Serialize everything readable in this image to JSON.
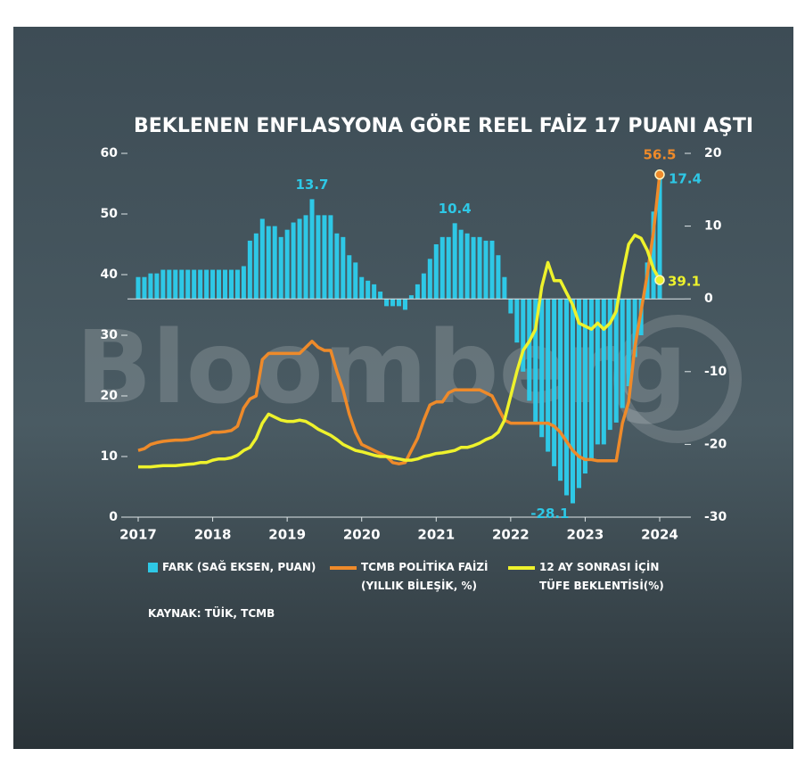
{
  "chart_data": {
    "type": "bar",
    "title": "BEKLENEN ENFLASYONA GÖRE REEL FAİZ 17 PUANI AŞTI",
    "watermark": "Bloomberg",
    "source": "KAYNAK: TÜİK, TCMB",
    "categories": [
      "2017",
      null,
      null,
      null,
      null,
      null,
      null,
      null,
      null,
      null,
      null,
      null,
      "2018",
      null,
      null,
      null,
      null,
      null,
      null,
      null,
      null,
      null,
      null,
      null,
      "2019",
      null,
      null,
      null,
      null,
      null,
      null,
      null,
      null,
      null,
      null,
      null,
      "2020",
      null,
      null,
      null,
      null,
      null,
      null,
      null,
      null,
      null,
      null,
      null,
      "2021",
      null,
      null,
      null,
      null,
      null,
      null,
      null,
      null,
      null,
      null,
      null,
      "2022",
      null,
      null,
      null,
      null,
      null,
      null,
      null,
      null,
      null,
      null,
      null,
      "2023",
      null,
      null,
      null,
      null,
      null,
      null,
      null,
      null,
      null,
      null,
      null,
      "2024"
    ],
    "ylim": [
      0,
      60
    ],
    "yticks": [
      0,
      10,
      20,
      30,
      40,
      50,
      60
    ],
    "y2lim": [
      -30,
      20
    ],
    "y2ticks": [
      -30,
      -20,
      -10,
      0,
      10,
      20
    ],
    "series": [
      {
        "name": "FARK (SAĞ EKSEN, PUAN)",
        "type": "bar",
        "axis": "y2",
        "color": "#2ec8e6",
        "values": [
          3,
          3,
          3.5,
          3.5,
          4,
          4,
          4,
          4,
          4,
          4,
          4,
          4,
          4,
          4,
          4,
          4,
          4,
          4.5,
          8,
          9,
          11,
          10,
          10,
          8.5,
          9.5,
          10.5,
          11,
          11.5,
          13.7,
          11.5,
          11.5,
          11.5,
          9,
          8.5,
          6,
          5,
          3,
          2.5,
          2,
          1,
          -1,
          -1,
          -1,
          -1.5,
          0.5,
          2,
          3.5,
          5.5,
          7.5,
          8.5,
          8.5,
          10.4,
          9.5,
          9,
          8.5,
          8.5,
          8,
          8,
          6,
          3,
          -2,
          -6,
          -10,
          -14,
          -17,
          -19,
          -21,
          -23,
          -25,
          -27,
          -28.1,
          -26,
          -24,
          -22,
          -20,
          -20,
          -18,
          -17,
          -15,
          -12,
          -8,
          -5,
          5,
          12,
          17.4
        ],
        "value_labels": [
          null,
          null,
          null,
          null,
          null,
          null,
          null,
          null,
          null,
          null,
          null,
          null,
          null,
          null,
          null,
          null,
          null,
          null,
          null,
          null,
          null,
          null,
          null,
          null,
          null,
          null,
          null,
          null,
          "13.7",
          null,
          null,
          null,
          null,
          null,
          null,
          null,
          null,
          null,
          null,
          null,
          null,
          null,
          null,
          null,
          null,
          null,
          null,
          null,
          null,
          null,
          null,
          "10.4",
          null,
          null,
          null,
          null,
          null,
          null,
          null,
          null,
          null,
          null,
          null,
          null,
          null,
          null,
          null,
          null,
          null,
          null,
          "-28.1",
          null,
          null,
          null,
          null,
          null,
          null,
          null,
          null,
          null,
          null,
          null,
          null,
          null,
          "17.4"
        ]
      },
      {
        "name": "TCMB POLİTİKA FAİZİ\n(YILLIK BİLEŞİK, %)",
        "type": "line",
        "color": "#ee8a2a",
        "values": [
          11,
          11.3,
          12,
          12.3,
          12.5,
          12.6,
          12.7,
          12.7,
          12.8,
          13,
          13.3,
          13.6,
          14,
          14,
          14.1,
          14.3,
          15,
          18,
          19.5,
          20,
          26,
          27,
          27,
          27,
          27,
          27,
          27,
          28,
          29,
          28,
          27.5,
          27.5,
          24,
          21,
          17,
          14,
          12,
          11.5,
          11,
          10.5,
          10,
          9,
          8.8,
          9,
          11,
          13,
          16,
          18.5,
          19,
          19,
          20.5,
          21,
          21,
          21,
          21,
          21,
          20.5,
          20,
          18,
          16,
          15.5,
          15.5,
          15.5,
          15.5,
          15.5,
          15.5,
          15.5,
          15,
          14,
          12.5,
          11,
          10,
          9.5,
          9.5,
          9.3,
          9.3,
          9.3,
          9.3,
          15.5,
          19,
          28,
          34,
          40,
          47,
          56.5
        ],
        "value_labels": [
          null,
          null,
          null,
          null,
          null,
          null,
          null,
          null,
          null,
          null,
          null,
          null,
          null,
          null,
          null,
          null,
          null,
          null,
          null,
          null,
          null,
          null,
          null,
          null,
          null,
          null,
          null,
          null,
          null,
          null,
          null,
          null,
          null,
          null,
          null,
          null,
          null,
          null,
          null,
          null,
          null,
          null,
          null,
          null,
          null,
          null,
          null,
          null,
          null,
          null,
          null,
          null,
          null,
          null,
          null,
          null,
          null,
          null,
          null,
          null,
          null,
          null,
          null,
          null,
          null,
          null,
          null,
          null,
          null,
          null,
          null,
          null,
          null,
          null,
          null,
          null,
          null,
          null,
          null,
          null,
          null,
          null,
          null,
          null,
          "56.5"
        ]
      },
      {
        "name": "12 AY SONRASI İÇİN\nTÜFE BEKLENTİSİ(%)",
        "type": "line",
        "color": "#eef22c",
        "values": [
          8.3,
          8.3,
          8.3,
          8.4,
          8.5,
          8.5,
          8.5,
          8.6,
          8.7,
          8.8,
          9,
          9,
          9.4,
          9.6,
          9.6,
          9.8,
          10.2,
          11,
          11.5,
          13,
          15.5,
          17,
          16.5,
          16,
          15.8,
          15.8,
          16,
          15.8,
          15.2,
          14.5,
          14,
          13.5,
          12.8,
          12,
          11.5,
          11,
          10.8,
          10.5,
          10.2,
          10,
          10,
          9.8,
          9.6,
          9.4,
          9.4,
          9.6,
          10,
          10.2,
          10.5,
          10.6,
          10.8,
          11,
          11.5,
          11.5,
          11.8,
          12.2,
          12.8,
          13.2,
          14,
          16,
          20,
          24,
          27.5,
          29,
          31,
          38,
          42,
          39,
          39,
          37,
          35,
          32,
          31.5,
          31,
          32,
          31,
          32,
          34,
          40,
          45,
          46.5,
          46,
          44,
          41,
          39.1
        ],
        "value_labels": [
          null,
          null,
          null,
          null,
          null,
          null,
          null,
          null,
          null,
          null,
          null,
          null,
          null,
          null,
          null,
          null,
          null,
          null,
          null,
          null,
          null,
          null,
          null,
          null,
          null,
          null,
          null,
          null,
          null,
          null,
          null,
          null,
          null,
          null,
          null,
          null,
          null,
          null,
          null,
          null,
          null,
          null,
          null,
          null,
          null,
          null,
          null,
          null,
          null,
          null,
          null,
          null,
          null,
          null,
          null,
          null,
          null,
          null,
          null,
          null,
          null,
          null,
          null,
          null,
          null,
          null,
          null,
          null,
          null,
          null,
          null,
          null,
          null,
          null,
          null,
          null,
          null,
          null,
          null,
          null,
          null,
          null,
          null,
          null,
          "39.1"
        ]
      }
    ]
  }
}
